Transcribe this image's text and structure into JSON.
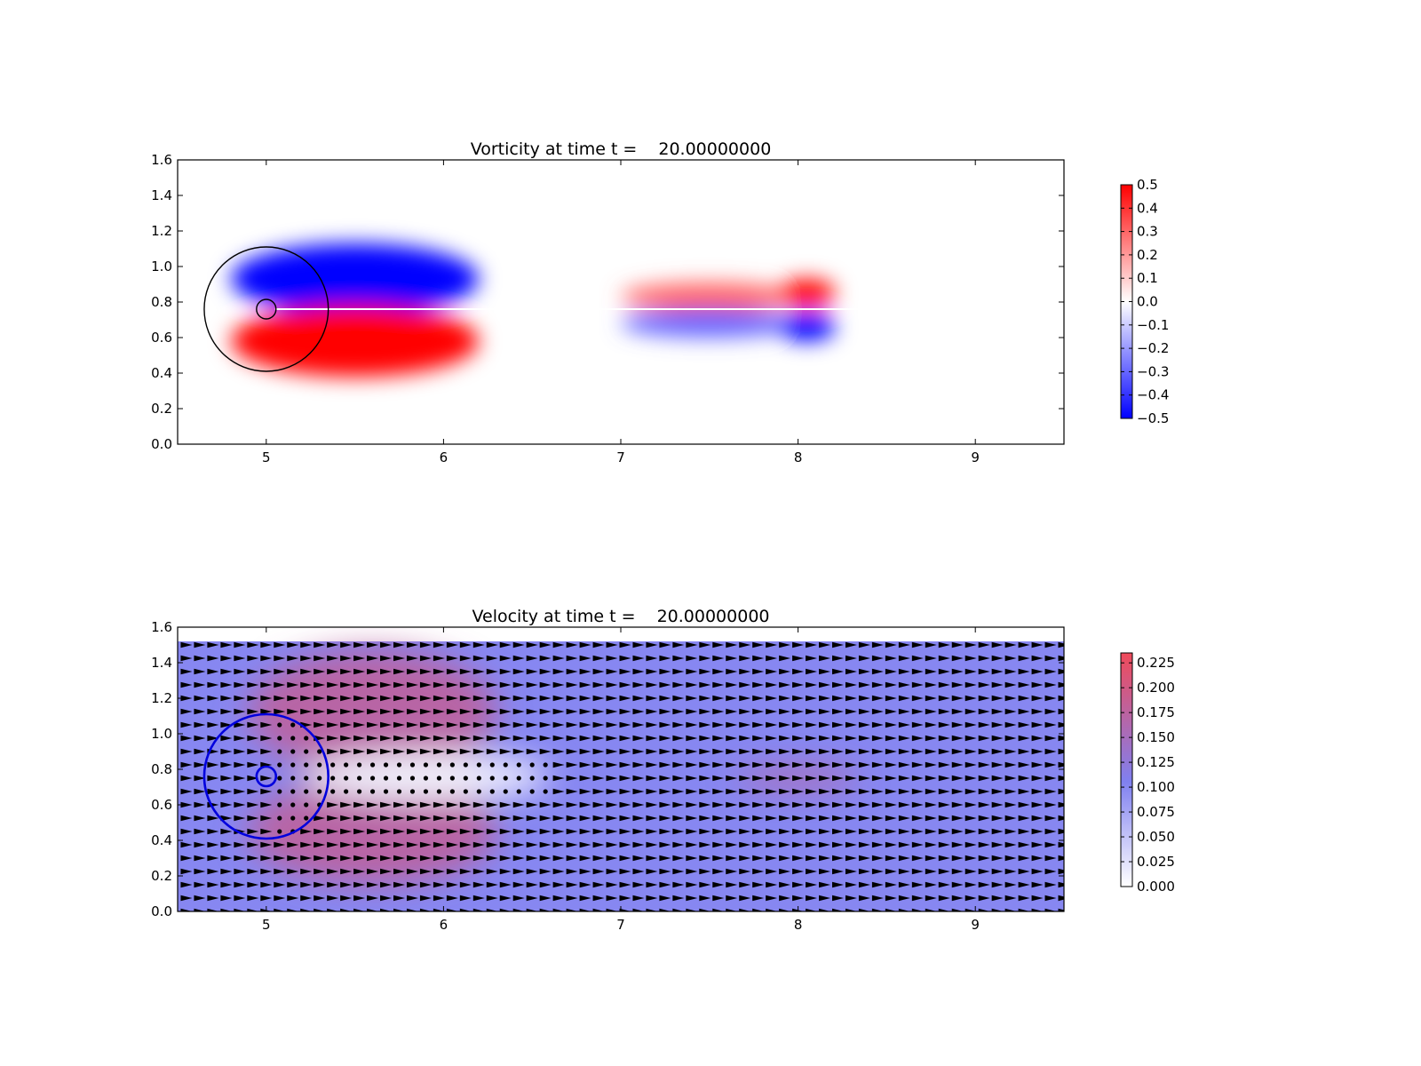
{
  "chart_data": [
    {
      "type": "heatmap",
      "title_prefix": "Vorticity at time t =",
      "title_time": "20.00000000",
      "xlim": [
        4.5,
        9.5
      ],
      "ylim": [
        0.0,
        1.6
      ],
      "xticks": [
        5,
        6,
        7,
        8,
        9
      ],
      "xtick_labels": [
        "5",
        "6",
        "7",
        "8",
        "9"
      ],
      "yticks": [
        0.0,
        0.2,
        0.4,
        0.6,
        0.8,
        1.0,
        1.2,
        1.4,
        1.6
      ],
      "ytick_labels": [
        "0.0",
        "0.2",
        "0.4",
        "0.6",
        "0.8",
        "1.0",
        "1.2",
        "1.4",
        "1.6"
      ],
      "colormap": "bwr",
      "colorbar": {
        "range": [
          -0.5,
          0.5
        ],
        "ticks": [
          0.5,
          0.4,
          0.3,
          0.2,
          0.1,
          0.0,
          -0.1,
          -0.2,
          -0.3,
          -0.4,
          -0.5
        ],
        "tick_labels": [
          "0.5",
          "0.4",
          "0.3",
          "0.2",
          "0.1",
          "0.0",
          "−0.1",
          "−0.2",
          "−0.3",
          "−0.4",
          "−0.5"
        ],
        "colors": {
          "low": "#0000ff",
          "mid": "#ffffff",
          "high": "#ff0000"
        }
      },
      "circles": [
        {
          "cx": 5.0,
          "cy": 0.76,
          "r": 0.35,
          "color": "#000000"
        },
        {
          "cx": 5.0,
          "cy": 0.76,
          "r": 0.055,
          "color": "#000000"
        }
      ],
      "features": [
        {
          "cx": 5.5,
          "cy": 0.93,
          "rx": 0.7,
          "ry": 0.2,
          "value": -0.5
        },
        {
          "cx": 5.5,
          "cy": 0.58,
          "rx": 0.7,
          "ry": 0.2,
          "value": 0.5
        },
        {
          "cx": 7.5,
          "cy": 0.83,
          "rx": 0.5,
          "ry": 0.08,
          "value": 0.3
        },
        {
          "cx": 8.05,
          "cy": 0.85,
          "rx": 0.16,
          "ry": 0.08,
          "value": 0.5
        },
        {
          "cx": 7.5,
          "cy": 0.68,
          "rx": 0.5,
          "ry": 0.08,
          "value": -0.3
        },
        {
          "cx": 8.05,
          "cy": 0.66,
          "rx": 0.16,
          "ry": 0.08,
          "value": -0.5
        }
      ]
    },
    {
      "type": "heatmap",
      "title_prefix": "Velocity at time t =",
      "title_time": "20.00000000",
      "xlim": [
        4.5,
        9.5
      ],
      "ylim": [
        0.0,
        1.6
      ],
      "data_ylim": [
        0.0,
        1.52
      ],
      "xticks": [
        5,
        6,
        7,
        8,
        9
      ],
      "xtick_labels": [
        "5",
        "6",
        "7",
        "8",
        "9"
      ],
      "yticks": [
        0.0,
        0.2,
        0.4,
        0.6,
        0.8,
        1.0,
        1.2,
        1.4,
        1.6
      ],
      "ytick_labels": [
        "0.0",
        "0.2",
        "0.4",
        "0.6",
        "0.8",
        "1.0",
        "1.2",
        "1.4",
        "1.6"
      ],
      "colorbar": {
        "range": [
          0.0,
          0.235
        ],
        "ticks": [
          0.225,
          0.2,
          0.175,
          0.15,
          0.125,
          0.1,
          0.075,
          0.05,
          0.025,
          0.0
        ],
        "tick_labels": [
          "0.225",
          "0.200",
          "0.175",
          "0.150",
          "0.125",
          "0.100",
          "0.075",
          "0.050",
          "0.025",
          "0.000"
        ],
        "colors": {
          "low": "#ffffff",
          "mid": "#8080f0",
          "high": "#f04a5a"
        }
      },
      "background_speed": 0.1,
      "circles": [
        {
          "cx": 5.0,
          "cy": 0.76,
          "r": 0.35,
          "color": "#0000dd"
        },
        {
          "cx": 5.0,
          "cy": 0.76,
          "r": 0.055,
          "color": "#0000dd"
        }
      ],
      "features": [
        {
          "cx": 5.6,
          "cy": 1.12,
          "rx": 0.7,
          "ry": 0.35,
          "value": 0.17
        },
        {
          "cx": 5.6,
          "cy": 0.45,
          "rx": 0.7,
          "ry": 0.3,
          "value": 0.17
        },
        {
          "cx": 5.9,
          "cy": 0.76,
          "rx": 0.7,
          "ry": 0.13,
          "value": 0.01
        },
        {
          "cx": 8.0,
          "cy": 0.75,
          "rx": 0.35,
          "ry": 0.04,
          "value": 0.18
        }
      ],
      "quiver": {
        "x_start": 4.55,
        "x_step": 0.075,
        "x_count": 67,
        "y_start": 0.0,
        "y_step": 0.075,
        "y_count": 21,
        "color": "#000000"
      }
    }
  ]
}
